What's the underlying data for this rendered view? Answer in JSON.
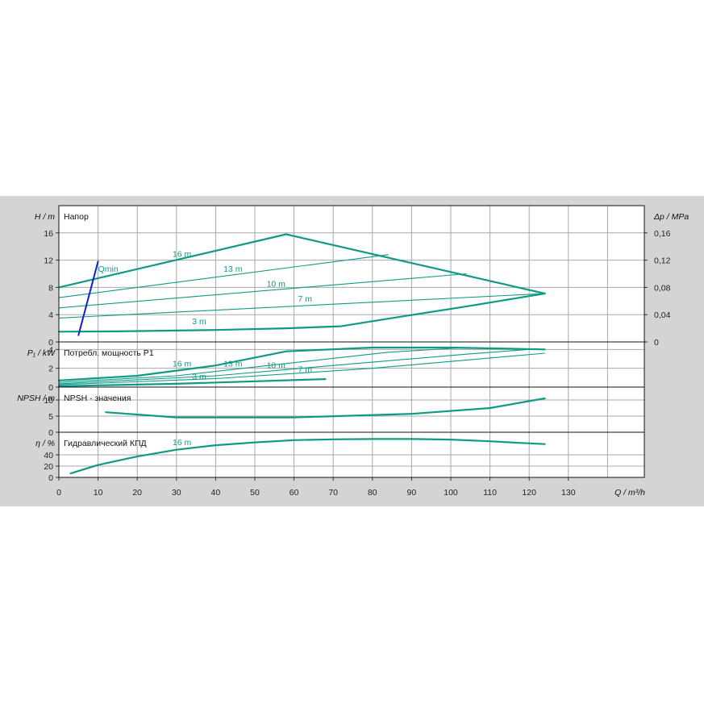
{
  "chart_data": {
    "type": "line",
    "x_axis": {
      "label": "Q / m³/h",
      "range": [
        0,
        150
      ],
      "ticks": [
        0,
        10,
        20,
        30,
        40,
        50,
        60,
        70,
        80,
        90,
        100,
        110,
        120,
        130
      ]
    },
    "colors": {
      "curve": "#0f9a86",
      "qmin": "#1020c8",
      "grid": "#a8a8a8",
      "plot_bg": "#ffffff",
      "panel_bg": "#d4d4d4"
    },
    "panels": [
      {
        "id": "head",
        "title": "Напор",
        "ylabel": "H / m",
        "ylim": [
          0,
          20
        ],
        "yticks": [
          0,
          4,
          8,
          12,
          16
        ],
        "right_axis": {
          "label": "Δp / MPa",
          "ticks": [
            "0",
            "0,04",
            "0,08",
            "0,12",
            "0,16"
          ],
          "values": [
            0,
            4,
            8,
            12,
            16
          ]
        },
        "series": [
          {
            "label": "16 m",
            "label_at": [
              29,
              12.5
            ],
            "bold": true,
            "x": [
              0,
              58,
              124
            ],
            "y": [
              8,
              15.8,
              7.1
            ]
          },
          {
            "label": "13 m",
            "label_at": [
              42,
              10.3
            ],
            "bold": false,
            "x": [
              0,
              84
            ],
            "y": [
              6.5,
              12.8
            ]
          },
          {
            "label": "10 m",
            "label_at": [
              53,
              8.1
            ],
            "bold": false,
            "x": [
              0,
              104
            ],
            "y": [
              5,
              10
            ]
          },
          {
            "label": "7 m",
            "label_at": [
              61,
              5.9
            ],
            "bold": false,
            "x": [
              0,
              124
            ],
            "y": [
              3.5,
              7.1
            ]
          },
          {
            "label": "3 m",
            "label_at": [
              34,
              2.6
            ],
            "bold": true,
            "x": [
              0,
              15,
              40,
              58,
              72,
              85,
              105,
              124
            ],
            "y": [
              1.5,
              1.55,
              1.75,
              2.0,
              2.3,
              3.5,
              5.3,
              7.1
            ]
          },
          {
            "label": "Qmin",
            "label_at": [
              10,
              10.3
            ],
            "bold": false,
            "color": "qmin",
            "x": [
              5,
              10
            ],
            "y": [
              1,
              11.8
            ]
          }
        ]
      },
      {
        "id": "power",
        "title": "Потребл. мощность P1",
        "ylabel": "P₁ / kW",
        "ylim": [
          0,
          4.8
        ],
        "yticks": [
          0,
          2,
          4
        ],
        "series": [
          {
            "label": "16 m",
            "label_at": [
              29,
              2.2
            ],
            "bold": true,
            "x": [
              0,
              20,
              40,
              58,
              80,
              100,
              124
            ],
            "y": [
              0.7,
              1.2,
              2.3,
              3.8,
              4.2,
              4.2,
              4.0
            ]
          },
          {
            "label": "13 m",
            "label_at": [
              42,
              2.2
            ],
            "bold": false,
            "x": [
              0,
              30,
              60,
              84,
              104
            ],
            "y": [
              0.5,
              1.2,
              2.6,
              3.7,
              4.2
            ]
          },
          {
            "label": "10 m",
            "label_at": [
              53,
              2.0
            ],
            "bold": false,
            "x": [
              0,
              40,
              70,
              104,
              120
            ],
            "y": [
              0.35,
              1.2,
              2.3,
              3.5,
              4.0
            ]
          },
          {
            "label": "7 m",
            "label_at": [
              61,
              1.6
            ],
            "bold": false,
            "x": [
              0,
              40,
              80,
              124
            ],
            "y": [
              0.25,
              0.9,
              2.0,
              3.6
            ]
          },
          {
            "label": "3 m",
            "label_at": [
              34,
              0.8
            ],
            "bold": true,
            "x": [
              0,
              30,
              68
            ],
            "y": [
              0.1,
              0.35,
              0.85
            ]
          }
        ]
      },
      {
        "id": "npsh",
        "title": "NPSH - значения",
        "ylabel": "NPSH / m",
        "ylim": [
          0,
          14
        ],
        "yticks": [
          0,
          5,
          10
        ],
        "series": [
          {
            "label": "",
            "bold": true,
            "x": [
              12,
              30,
              60,
              90,
              110,
              124
            ],
            "y": [
              6.2,
              4.6,
              4.6,
              5.7,
              7.5,
              10.5
            ]
          }
        ]
      },
      {
        "id": "eff",
        "title": "Гидравлический КПД",
        "ylabel": "η / %",
        "ylim": [
          0,
          80
        ],
        "yticks": [
          0,
          20,
          40
        ],
        "series": [
          {
            "label": "16 m",
            "label_at": [
              29,
              57
            ],
            "bold": true,
            "x": [
              3,
              10,
              20,
              30,
              40,
              50,
              60,
              70,
              80,
              90,
              100,
              110,
              118,
              124
            ],
            "y": [
              7,
              22,
              37,
              49,
              57,
              62,
              66,
              67.5,
              68,
              68,
              67,
              64,
              61,
              59
            ]
          }
        ]
      }
    ]
  }
}
